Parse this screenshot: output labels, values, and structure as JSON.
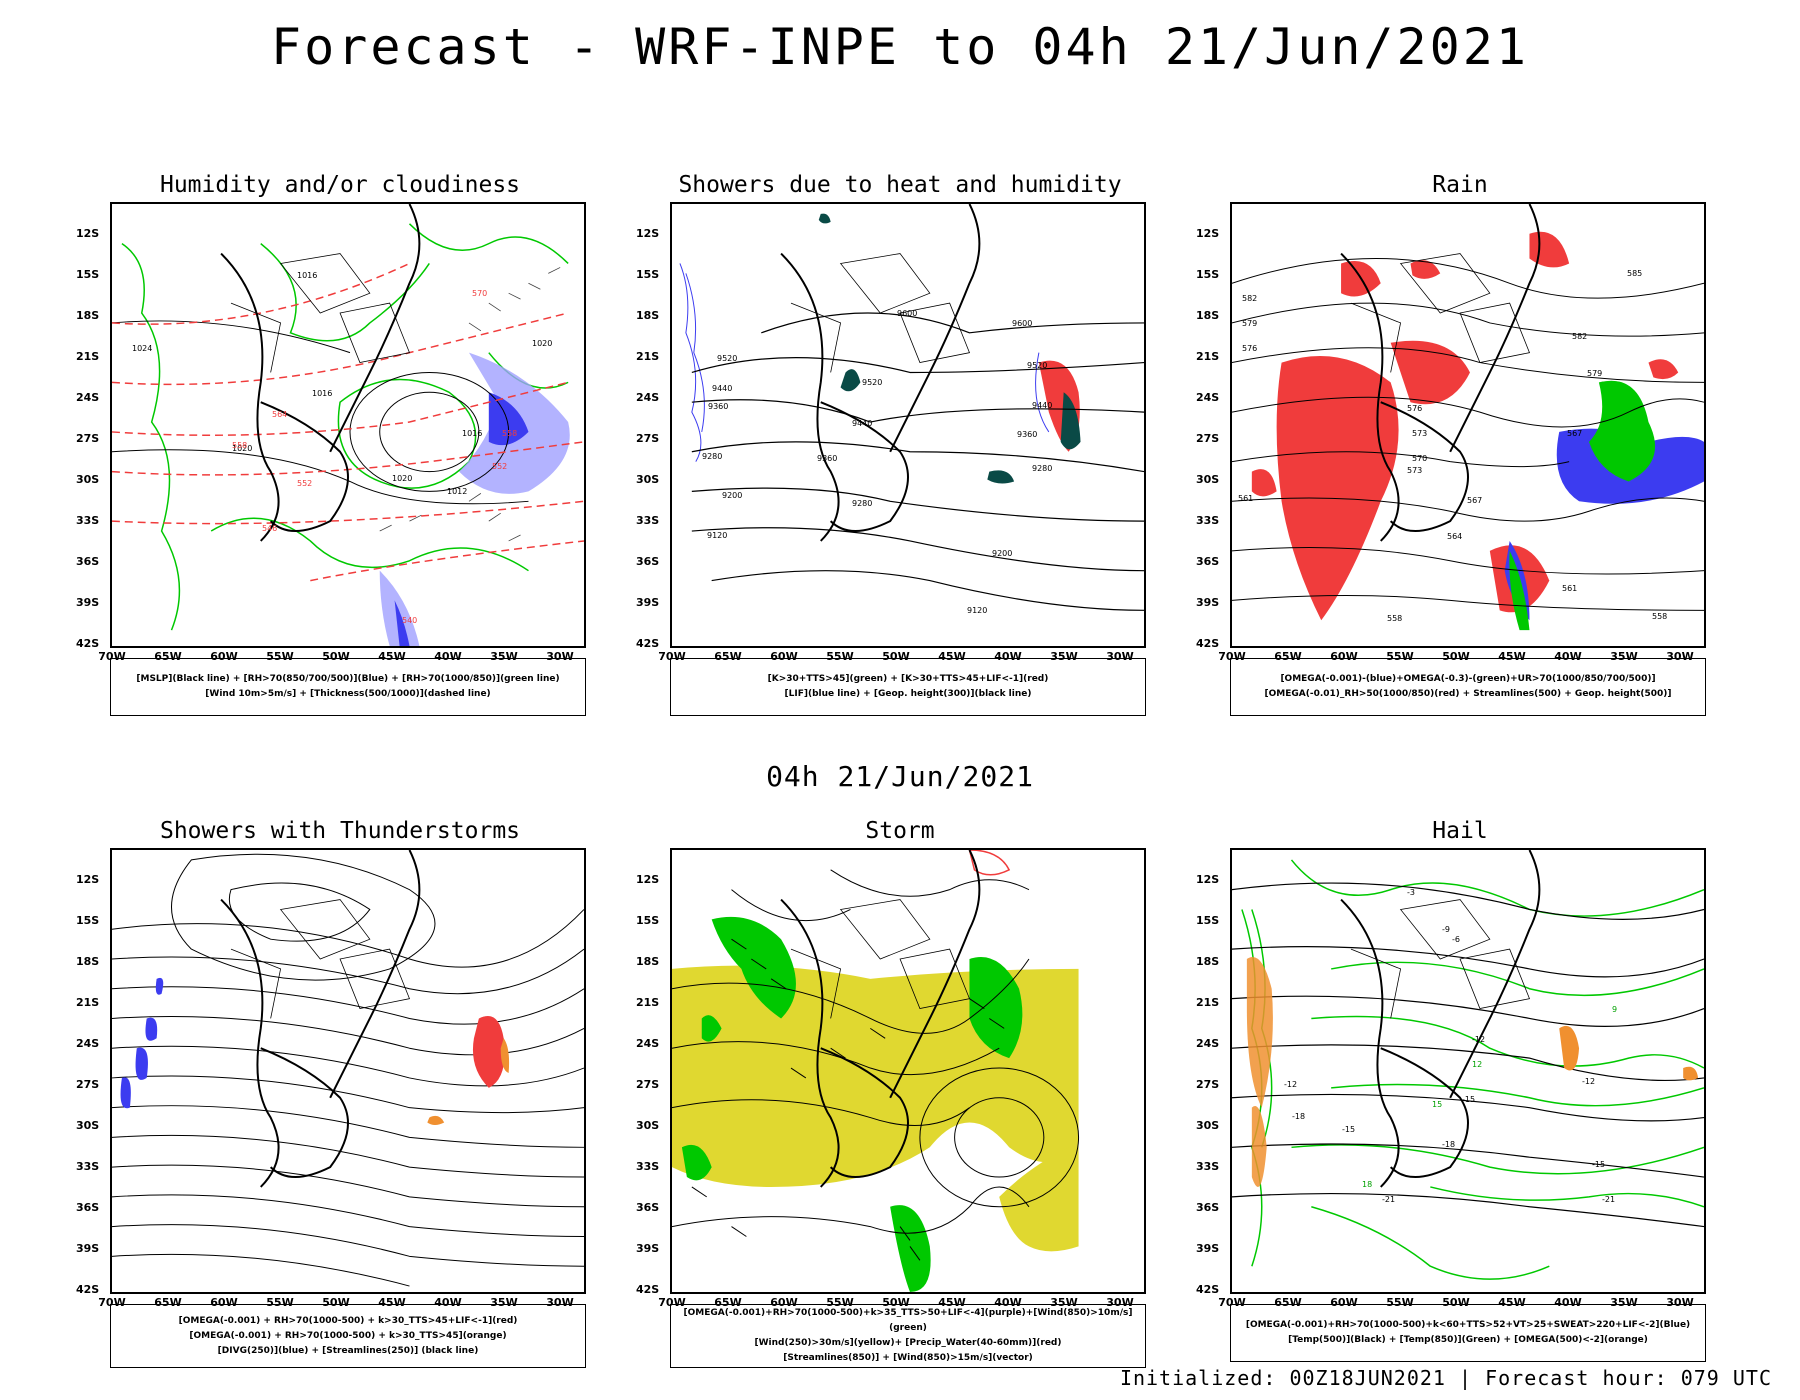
{
  "main_title": "Forecast - WRF-INPE to 04h 21/Jun/2021",
  "mid_title": "04h 21/Jun/2021",
  "footer": "Initialized: 00Z18JUN2021 | Forecast hour: 079 UTC",
  "y_ticks": [
    "12S",
    "15S",
    "18S",
    "21S",
    "24S",
    "27S",
    "30S",
    "33S",
    "36S",
    "39S",
    "42S"
  ],
  "x_ticks": [
    "70W",
    "65W",
    "60W",
    "55W",
    "50W",
    "45W",
    "40W",
    "35W",
    "30W"
  ],
  "panels": [
    {
      "title": "Humidity and/or cloudiness",
      "legend": [
        "[MSLP](Black line) + [RH>70(850/700/500)](Blue) + [RH>70(1000/850)](green line)",
        "[Wind 10m>5m/s] + [Thickness(500/1000)](dashed line)"
      ],
      "labels": [
        "1016",
        "1016",
        "1016",
        "1020",
        "1020",
        "1020",
        "1024",
        "1012",
        "570",
        "564",
        "558",
        "552",
        "546",
        "540",
        "558",
        "552"
      ]
    },
    {
      "title": "Showers due to heat and humidity",
      "legend": [
        "[K>30+TTS>45](green) + [K>30+TTS>45+LIF<-1](red)",
        "[LIF](blue line) + [Geop. height(300)](black line)"
      ],
      "labels": [
        "9600",
        "9600",
        "9520",
        "9520",
        "9520",
        "9440",
        "9440",
        "9440",
        "9360",
        "9360",
        "9360",
        "9280",
        "9280",
        "9280",
        "9200",
        "9200",
        "9120",
        "9120"
      ]
    },
    {
      "title": "Rain",
      "legend": [
        "[OMEGA(-0.001)-(blue)+OMEGA(-0.3)-(green)+UR>70(1000/850/700/500)]",
        "[OMEGA(-0.01)_RH>50(1000/850)(red) + Streamlines(500) + Geop. height(500)]"
      ],
      "labels": [
        "585",
        "582",
        "579",
        "576",
        "573",
        "570",
        "567",
        "564",
        "561",
        "558",
        "558",
        "561",
        "573",
        "576",
        "579",
        "582",
        "567"
      ]
    },
    {
      "title": "Showers with Thunderstorms",
      "legend": [
        "[OMEGA(-0.001) + RH>70(1000-500) + k>30_TTS>45+LIF<-1](red)",
        "[OMEGA(-0.001) + RH>70(1000-500) + k>30_TTS>45](orange)",
        "[DIVG(250)](blue) + [Streamlines(250)] (black line)"
      ],
      "labels": []
    },
    {
      "title": "Storm",
      "legend": [
        "[OMEGA(-0.001)+RH>70(1000-500)+k>35_TTS>50+LIF<-4](purple)+[Wind(850)>10m/s](green)",
        "[Wind(250)>30m/s](yellow)+ [Precip_Water(40-60mm)](red)",
        "[Streamlines(850)] + [Wind(850)>15m/s](vector)"
      ],
      "labels": []
    },
    {
      "title": "Hail",
      "legend": [
        "[OMEGA(-0.001)+RH>70(1000-500)+k<60+TTS>52+VT>25+SWEAT>220+LIF<-2](Blue)",
        "[Temp(500)](Black) + [Temp(850)](Green) + [OMEGA(500)<-2](orange)"
      ],
      "labels": [
        "-9",
        "-12",
        "-12",
        "-12",
        "-15",
        "-15",
        "-15",
        "-18",
        "-18",
        "-21",
        "-21",
        "9",
        "12",
        "15",
        "18",
        "-6",
        "-3"
      ]
    }
  ],
  "colors": {
    "black": "#000000",
    "green": "#00c800",
    "red": "#f03c3c",
    "blue": "#3c3cf0",
    "lightblue": "#a0a0ff",
    "orange": "#f09030",
    "yellow": "#e0d830",
    "teal": "#0a4a46"
  }
}
